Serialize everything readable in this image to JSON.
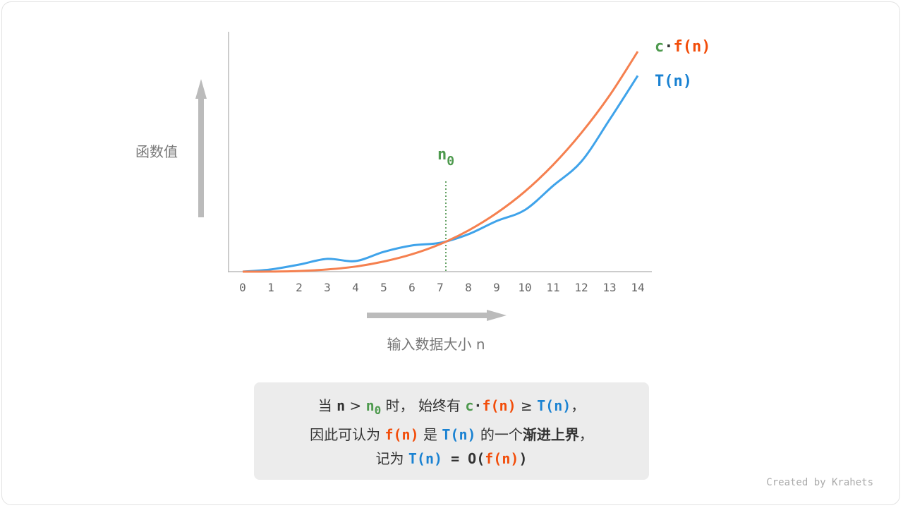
{
  "chart_data": {
    "type": "line",
    "x": [
      0,
      1,
      2,
      3,
      4,
      5,
      6,
      7,
      8,
      9,
      10,
      11,
      12,
      13,
      14
    ],
    "xlabel": "输入数据大小 n",
    "ylabel": "函数值",
    "xlim": [
      0,
      14
    ],
    "grid": false,
    "series": [
      {
        "name": "c·f(n)",
        "color": "#f5804f",
        "values": [
          0,
          0.04,
          0.3,
          1,
          2.3,
          4.6,
          7.9,
          12.5,
          18.7,
          26.6,
          36.4,
          48.5,
          63,
          80,
          100
        ]
      },
      {
        "name": "T(n)",
        "color": "#3fa3ea",
        "values": [
          0,
          1,
          3.2,
          5.8,
          4.8,
          9,
          11.9,
          13.1,
          17,
          23,
          28,
          39,
          50,
          69,
          89
        ]
      }
    ],
    "annotation": {
      "label": "n",
      "subscript": "0",
      "x": 7.2,
      "color": "#4e9a4e"
    }
  },
  "legend": {
    "cf_c": "c",
    "cf_dot": "·",
    "cf_f": "f(n)",
    "t": "T(n)"
  },
  "note": {
    "l1": [
      "当 ",
      "n",
      " > ",
      "n",
      "0",
      " 时， 始终有 ",
      "c",
      "·",
      "f(n)",
      " ≥ ",
      "T(n)",
      "，"
    ],
    "l2": [
      "因此可认为 ",
      "f(n)",
      " 是 ",
      "T(n)",
      " 的一个",
      "渐进上界",
      "，"
    ],
    "l3": [
      "记为 ",
      "T(n)",
      " = ",
      "O(",
      "f(n)",
      ")"
    ]
  },
  "credit": "Created by Krahets"
}
